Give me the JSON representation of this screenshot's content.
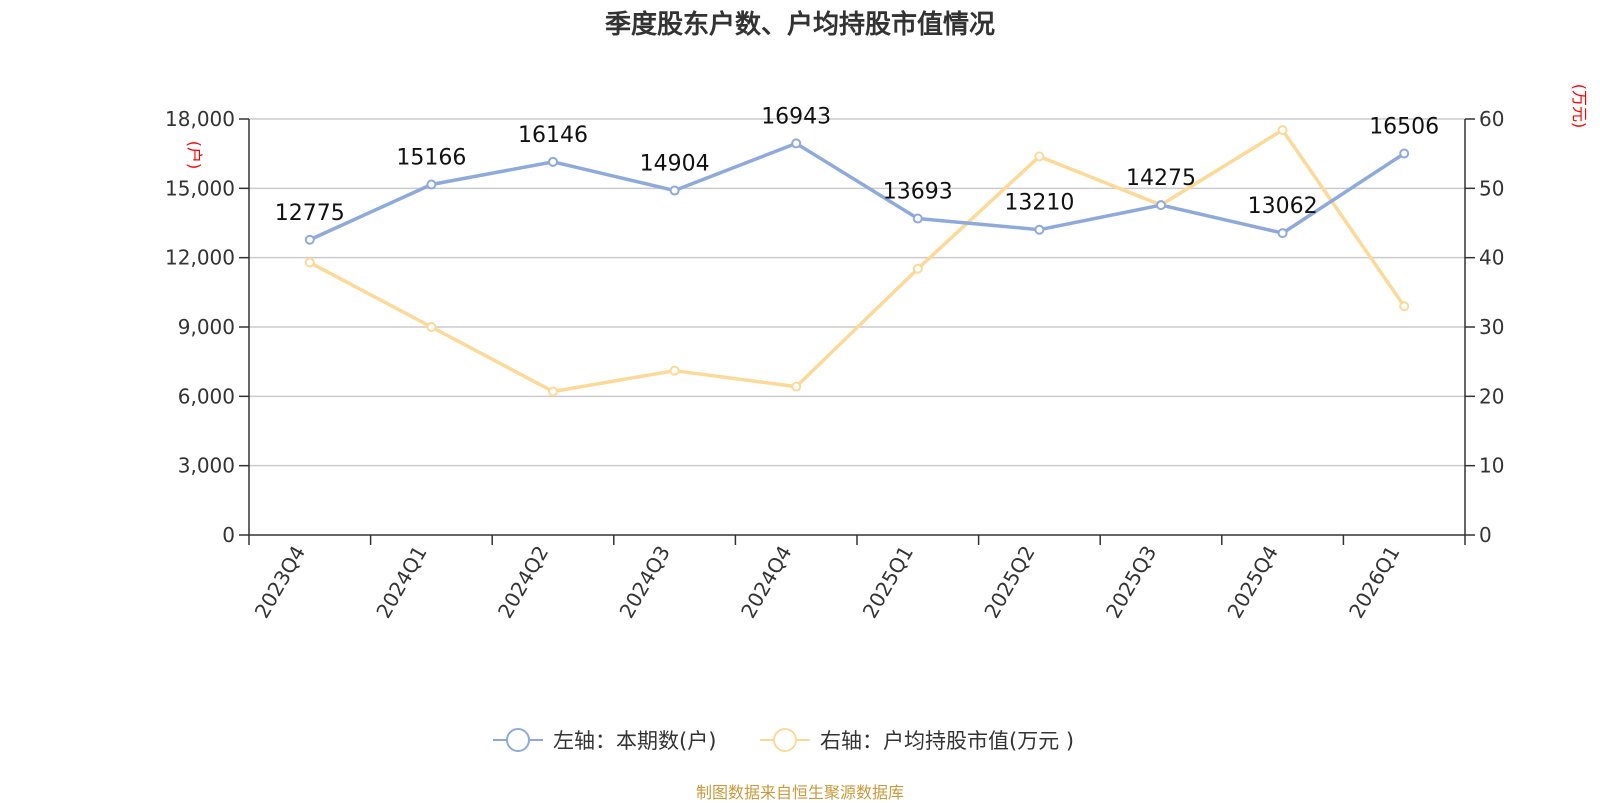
{
  "title": "季度股东户数、户均持股市值情况",
  "source": "制图数据来自恒生聚源数据库",
  "colors": {
    "left_series": "#8eaadb",
    "right_series": "#fdd999",
    "grid": "#cccccc",
    "axis": "#333333",
    "unit": "#ff0000",
    "source": "#c89a3c"
  },
  "chart_data": {
    "type": "line",
    "title": "季度股东户数、户均持股市值情况",
    "categories": [
      "2023Q4",
      "2024Q1",
      "2024Q2",
      "2024Q3",
      "2024Q4",
      "2025Q1",
      "2025Q2",
      "2025Q3",
      "2025Q4",
      "2026Q1"
    ],
    "left_axis": {
      "unit": "(户)",
      "range": [
        0,
        18000
      ],
      "ticks": [
        0,
        3000,
        6000,
        9000,
        12000,
        15000,
        18000
      ],
      "tick_labels": [
        "0",
        "3,000",
        "6,000",
        "9,000",
        "12,000",
        "15,000",
        "18,000"
      ]
    },
    "right_axis": {
      "unit": "(万元)",
      "range": [
        0,
        60
      ],
      "ticks": [
        0,
        10,
        20,
        30,
        40,
        50,
        60
      ],
      "tick_labels": [
        "0",
        "10",
        "20",
        "30",
        "40",
        "50",
        "60"
      ]
    },
    "grid": true,
    "legend_position": "bottom",
    "series": [
      {
        "name": "左轴：本期数(户)",
        "axis": "left",
        "values": [
          12775,
          15166,
          16146,
          14904,
          16943,
          13693,
          13210,
          14275,
          13062,
          16506
        ],
        "data_labels": [
          "12775",
          "15166",
          "16146",
          "14904",
          "16943",
          "13693",
          "13210",
          "14275",
          "13062",
          "16506"
        ]
      },
      {
        "name": "右轴：户均持股市值(万元 )",
        "axis": "right",
        "values": [
          39.3,
          30.0,
          20.7,
          23.7,
          21.4,
          38.4,
          54.6,
          47.6,
          58.4,
          33.0
        ]
      }
    ]
  }
}
